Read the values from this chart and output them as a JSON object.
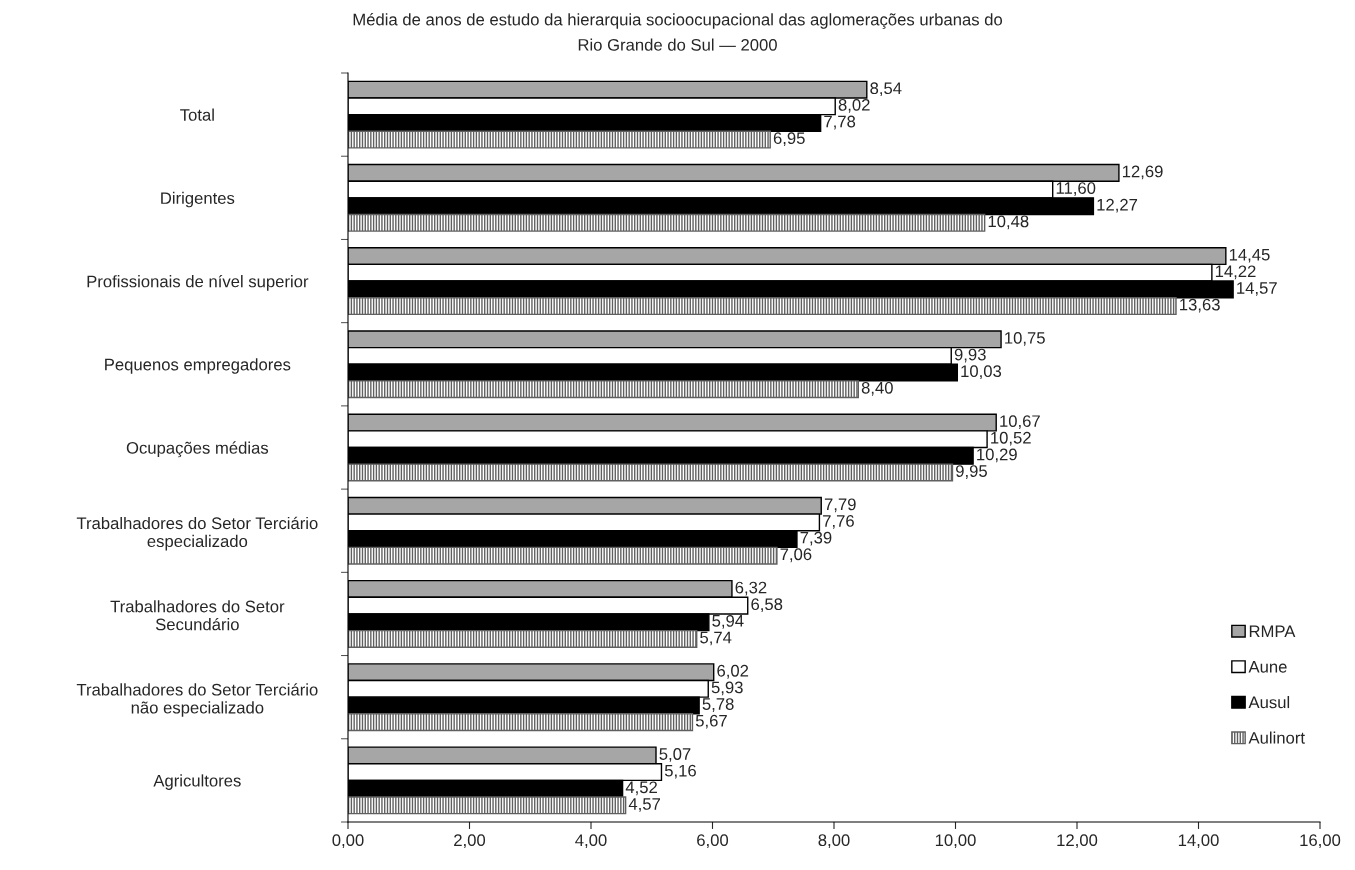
{
  "chart_data": {
    "type": "bar",
    "orientation": "horizontal",
    "title": "Média de anos de estudo da hierarquia socioocupacional das aglomerações urbanas do\nRio Grande do Sul — 2000",
    "categories": [
      "Total",
      "Dirigentes",
      "Profissionais de nível superior",
      "Pequenos empregadores",
      "Ocupações médias",
      "Trabalhadores do Setor Terciário\nespecializado",
      "Trabalhadores do Setor\nSecundário",
      "Trabalhadores do Setor Terciário\nnão especializado",
      "Agricultores"
    ],
    "series": [
      {
        "name": "RMPA",
        "color": "#a6a6a6",
        "values": [
          8.54,
          12.69,
          14.45,
          10.75,
          10.67,
          7.79,
          6.32,
          6.02,
          5.07
        ],
        "value_labels": [
          "8,54",
          "12,69",
          "14,45",
          "10,75",
          "10,67",
          "7,79",
          "6,32",
          "6,02",
          "5,07"
        ]
      },
      {
        "name": "Aune",
        "color": "#ffffff",
        "values": [
          8.02,
          11.6,
          14.22,
          9.93,
          10.52,
          7.76,
          6.58,
          5.93,
          5.16
        ],
        "value_labels": [
          "8,02",
          "11,60",
          "14,22",
          "9,93",
          "10,52",
          "7,76",
          "6,58",
          "5,93",
          "5,16"
        ]
      },
      {
        "name": "Ausul",
        "color": "#000000",
        "values": [
          7.78,
          12.27,
          14.57,
          10.03,
          10.29,
          7.39,
          5.94,
          5.78,
          4.52
        ],
        "value_labels": [
          "7,78",
          "12,27",
          "14,57",
          "10,03",
          "10,29",
          "7,39",
          "5,94",
          "5,78",
          "4,52"
        ]
      },
      {
        "name": "Aulinort",
        "color": "#606060",
        "values": [
          6.95,
          10.48,
          13.63,
          8.4,
          9.95,
          7.06,
          5.74,
          5.67,
          4.57
        ],
        "value_labels": [
          "6,95",
          "10,48",
          "13,63",
          "8,40",
          "9,95",
          "7,06",
          "5,74",
          "5,67",
          "4,57"
        ]
      }
    ],
    "xlim": [
      0,
      16
    ],
    "xticks": [
      {
        "value": 0,
        "label": "0,00"
      },
      {
        "value": 2,
        "label": "2,00"
      },
      {
        "value": 4,
        "label": "4,00"
      },
      {
        "value": 6,
        "label": "6,00"
      },
      {
        "value": 8,
        "label": "8,00"
      },
      {
        "value": 10,
        "label": "10,00"
      },
      {
        "value": 12,
        "label": "12,00"
      },
      {
        "value": 14,
        "label": "14,00"
      },
      {
        "value": 16,
        "label": "16,00"
      }
    ],
    "grid": false,
    "legend": "right"
  }
}
